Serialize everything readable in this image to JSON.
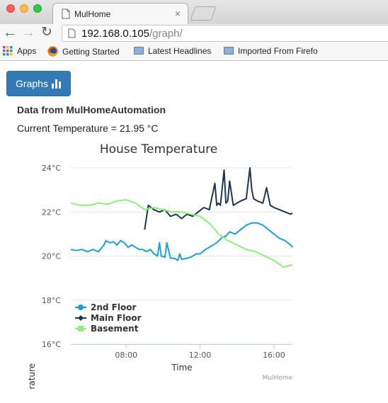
{
  "browser": {
    "tab_title": "MulHome",
    "tab_close": "×",
    "address_host": "192.168.0.105",
    "address_path": "/graph/",
    "bookmarks": [
      {
        "label": "Apps",
        "icon": "apps-grid-icon"
      },
      {
        "label": "Getting Started",
        "icon": "firefox-icon"
      },
      {
        "label": "Latest Headlines",
        "icon": "folder-icon"
      },
      {
        "label": "Imported From Firefo",
        "icon": "folder-icon"
      }
    ]
  },
  "page": {
    "graphs_button": "Graphs",
    "heading": "Data from MulHomeAutomation",
    "current_temperature": "Current Temperature = 21.95 °C"
  },
  "chart_data": {
    "type": "line",
    "title": "House Temperature",
    "xlabel": "Time",
    "ylabel": "Temperature",
    "credits": "MulHome",
    "ylim": [
      16,
      24
    ],
    "xlim": [
      5.0,
      17.0
    ],
    "y_ticks": [
      16,
      18,
      20,
      22,
      24
    ],
    "y_tick_labels": [
      "16°C",
      "18°C",
      "20°C",
      "22°C",
      "24°C"
    ],
    "x_ticks": [
      8,
      12,
      16
    ],
    "x_tick_labels": [
      "08:00",
      "12:00",
      "16:00"
    ],
    "grid": true,
    "legend_position": "bottom-left",
    "colors": {
      "2nd Floor": "#1aa0d6",
      "Main Floor": "#1b3553",
      "Basement": "#90ed7d"
    },
    "series": [
      {
        "name": "2nd Floor",
        "marker": "circle",
        "x": [
          5.0,
          5.3,
          5.6,
          5.9,
          6.2,
          6.5,
          6.8,
          6.9,
          7.1,
          7.3,
          7.5,
          7.7,
          7.9,
          8.1,
          8.3,
          8.5,
          8.7,
          8.9,
          9.1,
          9.3,
          9.5,
          9.7,
          9.8,
          9.9,
          10.1,
          10.2,
          10.4,
          10.6,
          10.8,
          10.9,
          11.0,
          11.3,
          11.5,
          11.8,
          12.0,
          12.3,
          12.6,
          12.9,
          13.2,
          13.4,
          13.6,
          13.9,
          14.2,
          14.5,
          14.8,
          15.1,
          15.4,
          15.7,
          16.0,
          16.3,
          16.6,
          16.9,
          17.0
        ],
        "y": [
          20.3,
          20.25,
          20.3,
          20.2,
          20.3,
          20.2,
          20.5,
          20.7,
          20.6,
          20.65,
          20.5,
          20.7,
          20.6,
          20.4,
          20.5,
          20.4,
          20.3,
          20.3,
          20.2,
          20.3,
          20.1,
          20.0,
          20.6,
          20.0,
          19.95,
          20.6,
          19.9,
          19.9,
          19.8,
          20.1,
          19.85,
          19.9,
          19.95,
          20.1,
          20.1,
          20.3,
          20.45,
          20.6,
          20.85,
          20.9,
          21.1,
          21.0,
          21.2,
          21.4,
          21.5,
          21.5,
          21.4,
          21.2,
          21.0,
          20.8,
          20.7,
          20.5,
          20.4
        ]
      },
      {
        "name": "Main Floor",
        "marker": "diamond",
        "x": [
          9.0,
          9.2,
          9.5,
          9.8,
          10.1,
          10.4,
          10.7,
          11.0,
          11.3,
          11.6,
          11.9,
          12.2,
          12.5,
          12.8,
          12.9,
          13.0,
          13.1,
          13.3,
          13.4,
          13.5,
          13.6,
          13.8,
          14.0,
          14.2,
          14.5,
          14.7,
          14.8,
          14.9,
          15.1,
          15.4,
          15.6,
          15.8,
          16.0,
          16.3,
          16.6,
          16.9,
          17.0
        ],
        "y": [
          21.2,
          22.3,
          22.1,
          22.0,
          22.1,
          21.8,
          21.9,
          21.7,
          21.9,
          21.8,
          22.0,
          22.2,
          22.1,
          23.3,
          22.3,
          22.4,
          22.3,
          23.9,
          22.4,
          22.5,
          23.4,
          22.3,
          22.4,
          22.5,
          22.6,
          24.0,
          23.0,
          22.6,
          22.5,
          22.4,
          23.1,
          22.3,
          22.2,
          22.1,
          22.0,
          21.9,
          21.95
        ]
      },
      {
        "name": "Basement",
        "marker": "square",
        "x": [
          5.0,
          5.5,
          6.0,
          6.5,
          7.0,
          7.5,
          8.0,
          8.5,
          9.0,
          9.5,
          10.0,
          10.5,
          11.0,
          11.5,
          12.0,
          12.5,
          13.0,
          13.5,
          14.0,
          14.5,
          15.0,
          15.5,
          16.0,
          16.5,
          17.0
        ],
        "y": [
          22.4,
          22.3,
          22.3,
          22.4,
          22.35,
          22.5,
          22.55,
          22.4,
          22.1,
          22.2,
          22.1,
          22.0,
          22.0,
          21.9,
          21.8,
          21.5,
          21.0,
          20.7,
          20.5,
          20.3,
          20.2,
          20.0,
          19.8,
          19.5,
          19.6
        ]
      }
    ]
  }
}
